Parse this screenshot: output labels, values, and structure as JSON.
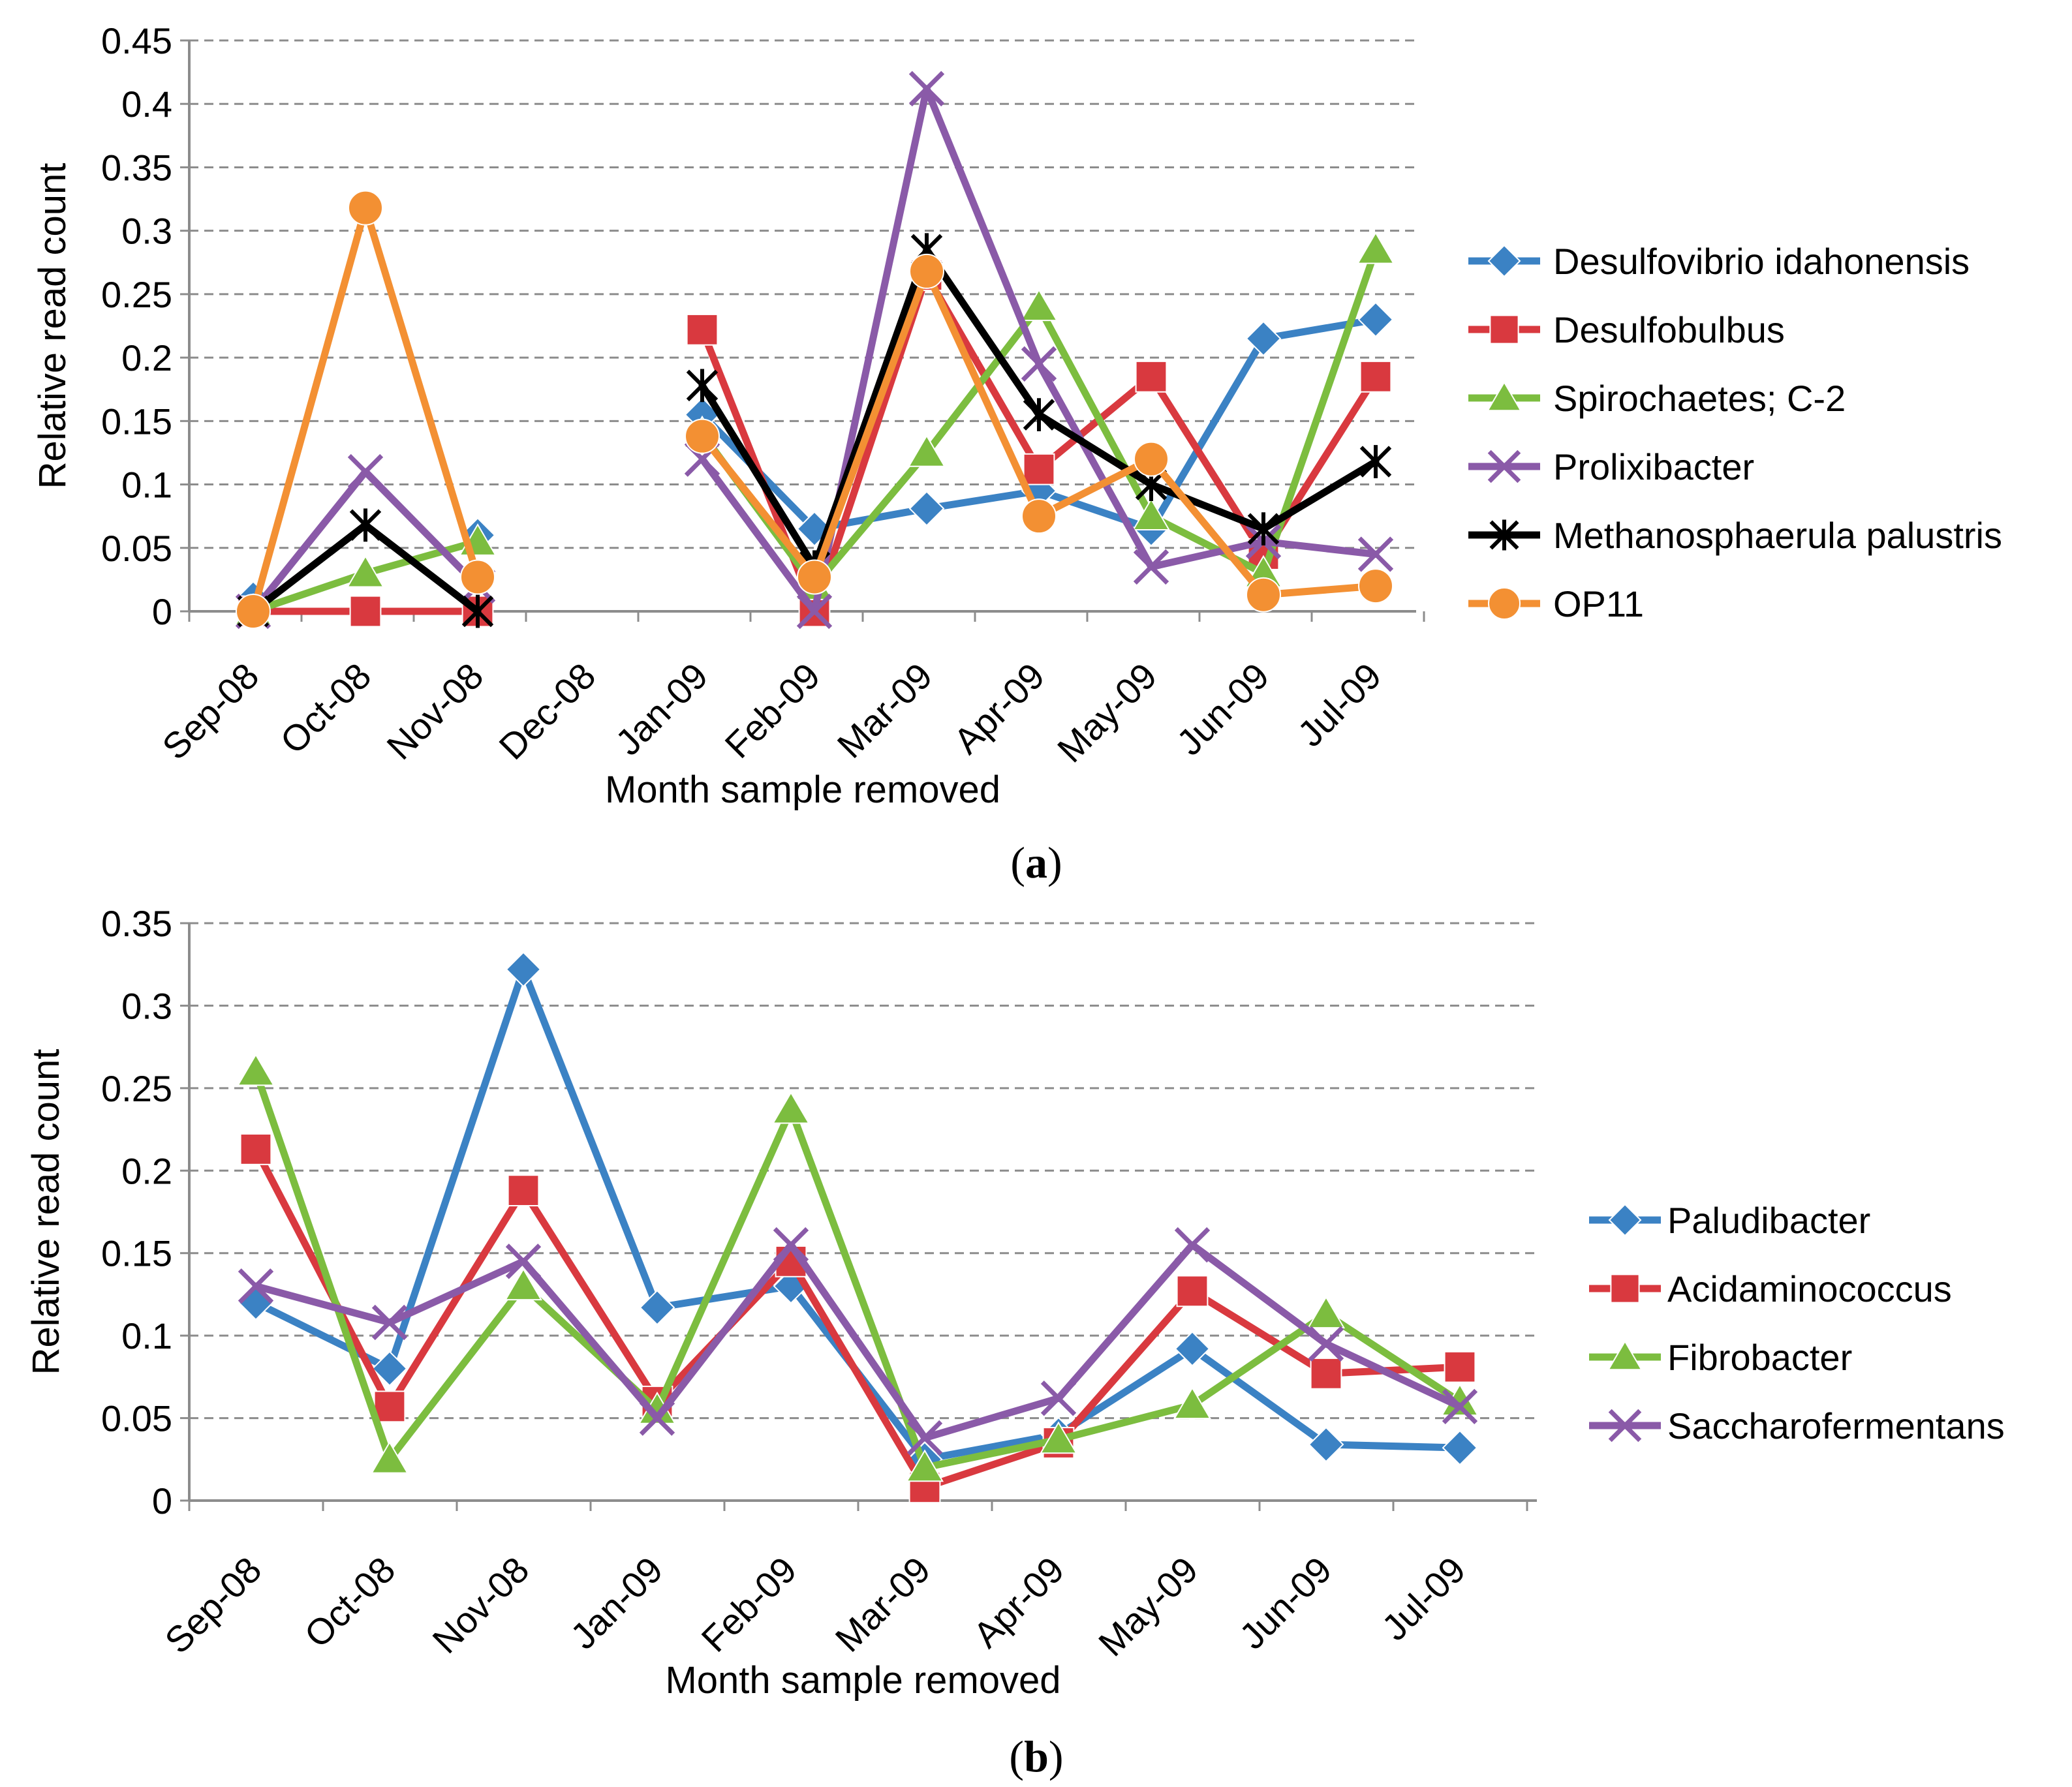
{
  "chart_data": [
    {
      "type": "line",
      "panel_label": "a",
      "title": "",
      "xlabel": "Month sample removed",
      "ylabel": "Relative read count",
      "ylim": [
        0,
        0.45
      ],
      "yticks": [
        "0",
        "0.05",
        "0.1",
        "0.15",
        "0.2",
        "0.25",
        "0.3",
        "0.35",
        "0.4",
        "0.45"
      ],
      "grid": true,
      "legend_position": "right",
      "categories": [
        "Sep-08",
        "Oct-08",
        "Nov-08",
        "Dec-08",
        "Jan-09",
        "Feb-09",
        "Mar-09",
        "Apr-09",
        "May-09",
        "Jun-09",
        "Jul-09"
      ],
      "series": [
        {
          "name": "Desulfovibrio idahonensis",
          "color": "#3b82c4",
          "marker": "diamond",
          "values": [
            0.01,
            null,
            0.06,
            null,
            0.155,
            0.065,
            0.081,
            0.095,
            0.065,
            0.215,
            0.23
          ]
        },
        {
          "name": "Desulfobulbus",
          "color": "#d9393f",
          "marker": "square",
          "values": [
            0,
            0,
            0,
            null,
            0.222,
            0,
            0.265,
            0.112,
            0.185,
            0.045,
            0.185
          ]
        },
        {
          "name": "Spirochaetes; C-2",
          "color": "#7cbd3f",
          "marker": "triangle",
          "values": [
            0,
            0.03,
            0.055,
            null,
            0.14,
            0.02,
            0.125,
            0.24,
            0.075,
            0.03,
            0.285
          ]
        },
        {
          "name": "Prolixibacter",
          "color": "#8a5aa8",
          "marker": "x",
          "values": [
            0,
            0.11,
            0.02,
            null,
            0.12,
            0,
            0.412,
            0.195,
            0.035,
            0.055,
            0.045
          ]
        },
        {
          "name": "Methanosphaerula palustris",
          "color": "#000000",
          "marker": "star",
          "values": [
            0,
            0.068,
            0,
            null,
            0.178,
            0.035,
            0.285,
            0.155,
            0.1,
            0.065,
            0.118
          ]
        },
        {
          "name": "OP11",
          "color": "#f39033",
          "marker": "circle",
          "values": [
            0,
            0.318,
            0.027,
            null,
            0.138,
            0.027,
            0.268,
            0.075,
            0.12,
            0.013,
            0.02
          ]
        }
      ]
    },
    {
      "type": "line",
      "panel_label": "b",
      "title": "",
      "xlabel": "Month sample removed",
      "ylabel": "Relative read count",
      "ylim": [
        0,
        0.35
      ],
      "yticks": [
        "0",
        "0.05",
        "0.1",
        "0.15",
        "0.2",
        "0.25",
        "0.3",
        "0.35"
      ],
      "grid": true,
      "legend_position": "right",
      "categories": [
        "Sep-08",
        "Oct-08",
        "Nov-08",
        "Jan-09",
        "Feb-09",
        "Mar-09",
        "Apr-09",
        "May-09",
        "Jun-09",
        "Jul-09"
      ],
      "series": [
        {
          "name": "Paludibacter",
          "color": "#3b82c4",
          "marker": "diamond",
          "values": [
            0.12,
            0.08,
            0.322,
            0.117,
            0.13,
            0.025,
            0.04,
            0.092,
            0.034,
            0.032
          ]
        },
        {
          "name": "Acidaminococcus",
          "color": "#d9393f",
          "marker": "square",
          "values": [
            0.213,
            0.057,
            0.188,
            0.06,
            0.145,
            0.008,
            0.035,
            0.127,
            0.077,
            0.081
          ]
        },
        {
          "name": "Fibrobacter",
          "color": "#7cbd3f",
          "marker": "triangle",
          "values": [
            0.26,
            0.025,
            0.13,
            0.055,
            0.237,
            0.02,
            0.037,
            0.058,
            0.113,
            0.06
          ]
        },
        {
          "name": "Saccharofermentans",
          "color": "#8a5aa8",
          "marker": "x",
          "values": [
            0.13,
            0.108,
            0.145,
            0.05,
            0.155,
            0.038,
            0.062,
            0.155,
            0.095,
            0.057
          ]
        }
      ]
    }
  ]
}
